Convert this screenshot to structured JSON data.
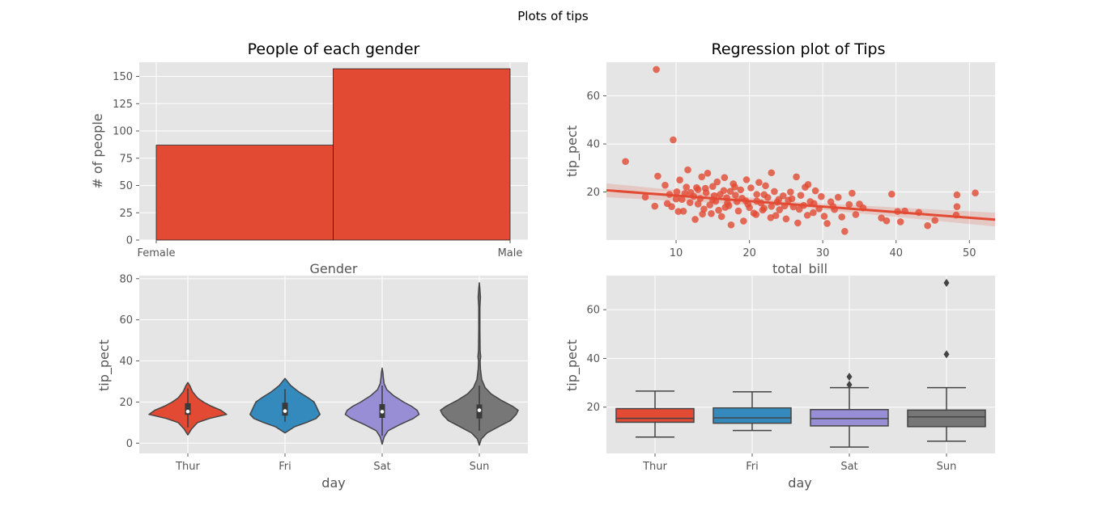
{
  "suptitle": "Plots of tips",
  "colors": {
    "panel_bg": "#E5E5E5",
    "grid": "#FFFFFF",
    "tick_text": "#555555",
    "red": "#E24A33",
    "blue": "#348ABD",
    "purple": "#988ED5",
    "gray": "#777777",
    "outline": "#444444"
  },
  "chart_data": [
    {
      "type": "bar",
      "title": "People of each gender",
      "xlabel": "Gender",
      "ylabel": "# of people",
      "categories": [
        "Female",
        "Male"
      ],
      "values": [
        87,
        157
      ],
      "ylim": [
        0,
        163
      ],
      "yticks": [
        0,
        25,
        50,
        75,
        100,
        125,
        150
      ],
      "grid": true
    },
    {
      "type": "scatter",
      "title": "Regression plot of Tips",
      "xlabel": "total_bill",
      "ylabel": "tip_pect",
      "xlim": [
        0.5,
        53.5
      ],
      "ylim": [
        0,
        74
      ],
      "xticks": [
        10,
        20,
        30,
        40,
        50
      ],
      "yticks": [
        20,
        40,
        60
      ],
      "points": [
        [
          3.1,
          32.7
        ],
        [
          7.3,
          71.0
        ],
        [
          9.6,
          41.7
        ],
        [
          7.5,
          26.6
        ],
        [
          11.6,
          29.2
        ],
        [
          13.5,
          26.3
        ],
        [
          14.3,
          27.8
        ],
        [
          16.6,
          26.0
        ],
        [
          23.0,
          28.0
        ],
        [
          26.4,
          26.3
        ],
        [
          28.0,
          23.1
        ],
        [
          5.8,
          17.9
        ],
        [
          7.1,
          14.1
        ],
        [
          8.5,
          22.8
        ],
        [
          8.8,
          15.2
        ],
        [
          9.4,
          13.9
        ],
        [
          10.1,
          20.1
        ],
        [
          10.5,
          25.0
        ],
        [
          10.8,
          16.9
        ],
        [
          11.2,
          19.4
        ],
        [
          11.9,
          15.6
        ],
        [
          12.4,
          18.2
        ],
        [
          12.6,
          8.6
        ],
        [
          13.0,
          21.0
        ],
        [
          13.3,
          17.3
        ],
        [
          13.8,
          12.9
        ],
        [
          14.1,
          19.7
        ],
        [
          14.6,
          14.6
        ],
        [
          15.0,
          22.3
        ],
        [
          15.4,
          16.1
        ],
        [
          15.8,
          12.4
        ],
        [
          16.2,
          9.8
        ],
        [
          16.5,
          20.6
        ],
        [
          16.9,
          17.6
        ],
        [
          17.2,
          14.3
        ],
        [
          17.5,
          6.3
        ],
        [
          17.8,
          23.4
        ],
        [
          18.1,
          18.7
        ],
        [
          18.5,
          12.1
        ],
        [
          18.8,
          20.9
        ],
        [
          19.2,
          7.9
        ],
        [
          19.5,
          16.3
        ],
        [
          19.8,
          14.9
        ],
        [
          20.2,
          21.7
        ],
        [
          20.6,
          11.2
        ],
        [
          21.0,
          19.0
        ],
        [
          21.3,
          24.0
        ],
        [
          21.6,
          15.4
        ],
        [
          22.0,
          13.2
        ],
        [
          22.5,
          17.7
        ],
        [
          22.9,
          9.3
        ],
        [
          23.4,
          20.2
        ],
        [
          23.8,
          15.8
        ],
        [
          24.1,
          12.6
        ],
        [
          24.6,
          18.4
        ],
        [
          25.0,
          8.8
        ],
        [
          25.3,
          16.6
        ],
        [
          25.6,
          20.0
        ],
        [
          26.0,
          13.8
        ],
        [
          26.6,
          7.1
        ],
        [
          27.0,
          18.6
        ],
        [
          27.4,
          14.4
        ],
        [
          27.9,
          10.3
        ],
        [
          28.3,
          16.0
        ],
        [
          28.7,
          11.4
        ],
        [
          29.0,
          20.5
        ],
        [
          29.5,
          13.0
        ],
        [
          29.8,
          18.1
        ],
        [
          30.2,
          9.9
        ],
        [
          30.6,
          6.9
        ],
        [
          31.1,
          15.9
        ],
        [
          31.6,
          12.7
        ],
        [
          32.1,
          17.8
        ],
        [
          32.6,
          9.6
        ],
        [
          33.0,
          3.6
        ],
        [
          33.6,
          14.8
        ],
        [
          34.0,
          19.5
        ],
        [
          34.5,
          10.6
        ],
        [
          35.0,
          15.0
        ],
        [
          35.5,
          13.4
        ],
        [
          38.0,
          9.2
        ],
        [
          38.7,
          8.0
        ],
        [
          39.4,
          19.1
        ],
        [
          40.2,
          11.9
        ],
        [
          40.6,
          7.6
        ],
        [
          41.2,
          12.1
        ],
        [
          43.1,
          11.5
        ],
        [
          44.3,
          6.0
        ],
        [
          45.3,
          8.2
        ],
        [
          48.2,
          10.4
        ],
        [
          48.3,
          13.9
        ],
        [
          48.3,
          18.8
        ],
        [
          50.8,
          19.6
        ],
        [
          10.0,
          17.1
        ],
        [
          11.0,
          12.0
        ],
        [
          12.0,
          19.8
        ],
        [
          13.0,
          15.0
        ],
        [
          14.0,
          21.5
        ],
        [
          15.0,
          16.7
        ],
        [
          16.0,
          19.0
        ],
        [
          17.0,
          15.3
        ],
        [
          18.0,
          22.1
        ],
        [
          19.0,
          17.4
        ],
        [
          20.0,
          13.5
        ],
        [
          21.0,
          16.2
        ],
        [
          22.0,
          18.9
        ],
        [
          23.0,
          14.0
        ],
        [
          24.0,
          16.9
        ],
        [
          12.8,
          21.8
        ],
        [
          14.8,
          11.0
        ],
        [
          16.7,
          13.6
        ],
        [
          18.3,
          16.0
        ],
        [
          20.9,
          10.6
        ],
        [
          22.2,
          22.6
        ],
        [
          24.8,
          14.2
        ],
        [
          26.8,
          12.8
        ],
        [
          28.8,
          15.2
        ],
        [
          31.4,
          14.0
        ],
        [
          9.1,
          19.0
        ],
        [
          10.3,
          11.9
        ],
        [
          11.4,
          22.0
        ],
        [
          15.6,
          24.2
        ],
        [
          17.4,
          20.3
        ],
        [
          19.6,
          25.1
        ],
        [
          21.8,
          12.5
        ],
        [
          23.6,
          10.2
        ],
        [
          25.8,
          17.2
        ],
        [
          27.6,
          22.0
        ],
        [
          13.6,
          10.8
        ],
        [
          15.2,
          18.5
        ]
      ],
      "fit": {
        "x": [
          0.5,
          53.5
        ],
        "y": [
          20.7,
          8.5
        ]
      },
      "ci_halfwidth": 1.8,
      "grid": true
    },
    {
      "type": "violin",
      "xlabel": "day",
      "ylabel": "tip_pect",
      "categories": [
        "Thur",
        "Fri",
        "Sat",
        "Sun"
      ],
      "series_colors": [
        "#E24A33",
        "#348ABD",
        "#988ED5",
        "#777777"
      ],
      "ylim": [
        -5,
        81.5
      ],
      "yticks": [
        0,
        20,
        40,
        60,
        80
      ],
      "violins": [
        {
          "min": 4.0,
          "max": 29.5,
          "q1": 13.8,
          "median": 15.4,
          "q3": 19.4,
          "whisker_low": 7.7,
          "whisker_high": 26.6,
          "profile": [
            [
              4.0,
              0.0
            ],
            [
              7.0,
              0.1
            ],
            [
              10.0,
              0.25
            ],
            [
              12.0,
              0.55
            ],
            [
              14.0,
              1.0
            ],
            [
              16.0,
              0.85
            ],
            [
              18.0,
              0.6
            ],
            [
              20.0,
              0.4
            ],
            [
              22.0,
              0.25
            ],
            [
              25.0,
              0.12
            ],
            [
              28.0,
              0.05
            ],
            [
              29.5,
              0.0
            ]
          ]
        },
        {
          "min": 5.0,
          "max": 31.5,
          "q1": 13.4,
          "median": 15.6,
          "q3": 19.7,
          "whisker_low": 10.4,
          "whisker_high": 26.3,
          "profile": [
            [
              5.0,
              0.0
            ],
            [
              8.0,
              0.25
            ],
            [
              10.0,
              0.55
            ],
            [
              12.0,
              0.8
            ],
            [
              14.0,
              0.9
            ],
            [
              16.0,
              0.85
            ],
            [
              18.0,
              0.8
            ],
            [
              20.0,
              0.75
            ],
            [
              22.0,
              0.6
            ],
            [
              25.0,
              0.35
            ],
            [
              28.0,
              0.15
            ],
            [
              31.5,
              0.0
            ]
          ]
        },
        {
          "min": -0.5,
          "max": 36.5,
          "q1": 12.3,
          "median": 15.3,
          "q3": 19.0,
          "whisker_low": 3.6,
          "whisker_high": 28.0,
          "profile": [
            [
              -0.5,
              0.0
            ],
            [
              3.0,
              0.05
            ],
            [
              6.0,
              0.15
            ],
            [
              9.0,
              0.45
            ],
            [
              12.0,
              0.8
            ],
            [
              14.0,
              0.95
            ],
            [
              16.0,
              0.9
            ],
            [
              18.0,
              0.75
            ],
            [
              20.0,
              0.55
            ],
            [
              23.0,
              0.3
            ],
            [
              26.0,
              0.12
            ],
            [
              29.0,
              0.05
            ],
            [
              32.0,
              0.03
            ],
            [
              34.0,
              0.02
            ],
            [
              36.5,
              0.0
            ]
          ]
        },
        {
          "min": -1.0,
          "max": 78.0,
          "q1": 12.0,
          "median": 16.0,
          "q3": 18.8,
          "whisker_low": 6.0,
          "whisker_high": 28.0,
          "profile": [
            [
              -1.0,
              0.0
            ],
            [
              2.0,
              0.05
            ],
            [
              5.0,
              0.2
            ],
            [
              8.0,
              0.5
            ],
            [
              11.0,
              0.8
            ],
            [
              14.0,
              0.95
            ],
            [
              16.0,
              1.0
            ],
            [
              18.0,
              0.85
            ],
            [
              21.0,
              0.55
            ],
            [
              24.0,
              0.3
            ],
            [
              27.0,
              0.15
            ],
            [
              31.0,
              0.06
            ],
            [
              36.0,
              0.03
            ],
            [
              40.0,
              0.02
            ],
            [
              42.0,
              0.035
            ],
            [
              45.0,
              0.02
            ],
            [
              55.0,
              0.015
            ],
            [
              66.0,
              0.015
            ],
            [
              71.0,
              0.03
            ],
            [
              75.0,
              0.015
            ],
            [
              78.0,
              0.0
            ]
          ]
        }
      ],
      "grid": true
    },
    {
      "type": "box",
      "xlabel": "day",
      "ylabel": "tip_pect",
      "categories": [
        "Thur",
        "Fri",
        "Sat",
        "Sun"
      ],
      "series_colors": [
        "#E24A33",
        "#348ABD",
        "#988ED5",
        "#777777"
      ],
      "ylim": [
        1,
        74
      ],
      "yticks": [
        20,
        40,
        60
      ],
      "boxes": [
        {
          "whisker_low": 7.7,
          "q1": 13.8,
          "median": 15.4,
          "q3": 19.4,
          "whisker_high": 26.6,
          "outliers": []
        },
        {
          "whisker_low": 10.4,
          "q1": 13.4,
          "median": 15.6,
          "q3": 19.7,
          "whisker_high": 26.3,
          "outliers": []
        },
        {
          "whisker_low": 3.6,
          "q1": 12.3,
          "median": 15.3,
          "q3": 19.0,
          "whisker_high": 28.0,
          "outliers": [
            29.2,
            32.5
          ]
        },
        {
          "whisker_low": 6.0,
          "q1": 12.0,
          "median": 16.0,
          "q3": 18.8,
          "whisker_high": 28.0,
          "outliers": [
            41.7,
            71.0
          ]
        }
      ],
      "grid": true
    }
  ]
}
